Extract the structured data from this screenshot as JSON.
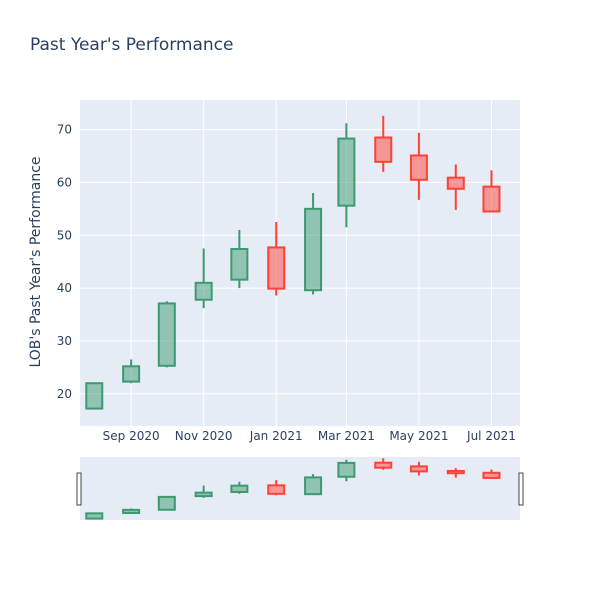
{
  "chart_data": {
    "type": "candlestick",
    "title": "Past Year's Performance",
    "ylabel": "LOB's Past Year's Performance",
    "xlabel": "",
    "ylim": [
      13.9,
      75.6
    ],
    "yticks": [
      20,
      30,
      40,
      50,
      60,
      70
    ],
    "xlim": [
      "2020-07-20",
      "2021-07-25"
    ],
    "xticks": [
      {
        "date": "2020-09-01",
        "label": "Sep 2020"
      },
      {
        "date": "2020-11-01",
        "label": "Nov 2020"
      },
      {
        "date": "2021-01-01",
        "label": "Jan 2021"
      },
      {
        "date": "2021-03-01",
        "label": "Mar 2021"
      },
      {
        "date": "2021-05-01",
        "label": "May 2021"
      },
      {
        "date": "2021-07-01",
        "label": "Jul 2021"
      }
    ],
    "grid": true,
    "rangeslider": true,
    "colors": {
      "increasing": "#3d9970",
      "increasing_fill": "rgba(61,153,112,0.5)",
      "decreasing": "#ff4136",
      "decreasing_fill": "rgba(255,65,54,0.5)",
      "plot_bg": "#e5ecf6",
      "text": "#2a3f5f"
    },
    "candles": [
      {
        "date": "2020-08-01",
        "open": 17.2,
        "high": 22.1,
        "low": 17.0,
        "close": 22.0
      },
      {
        "date": "2020-09-01",
        "open": 22.3,
        "high": 26.5,
        "low": 22.0,
        "close": 25.2
      },
      {
        "date": "2020-10-01",
        "open": 25.3,
        "high": 37.5,
        "low": 25.0,
        "close": 37.1
      },
      {
        "date": "2020-11-01",
        "open": 37.8,
        "high": 47.5,
        "low": 36.2,
        "close": 41.0
      },
      {
        "date": "2020-12-01",
        "open": 41.6,
        "high": 51.0,
        "low": 40.0,
        "close": 47.4
      },
      {
        "date": "2021-01-01",
        "open": 47.7,
        "high": 52.5,
        "low": 38.6,
        "close": 39.9
      },
      {
        "date": "2021-02-01",
        "open": 39.6,
        "high": 58.0,
        "low": 38.8,
        "close": 55.0
      },
      {
        "date": "2021-03-01",
        "open": 55.6,
        "high": 71.2,
        "low": 51.5,
        "close": 68.3
      },
      {
        "date": "2021-04-01",
        "open": 68.5,
        "high": 72.6,
        "low": 62.0,
        "close": 63.9
      },
      {
        "date": "2021-05-01",
        "open": 65.1,
        "high": 69.4,
        "low": 56.7,
        "close": 60.5
      },
      {
        "date": "2021-06-01",
        "open": 60.9,
        "high": 63.4,
        "low": 54.8,
        "close": 58.8
      },
      {
        "date": "2021-07-01",
        "open": 59.2,
        "high": 62.3,
        "low": 54.4,
        "close": 54.5
      }
    ]
  }
}
